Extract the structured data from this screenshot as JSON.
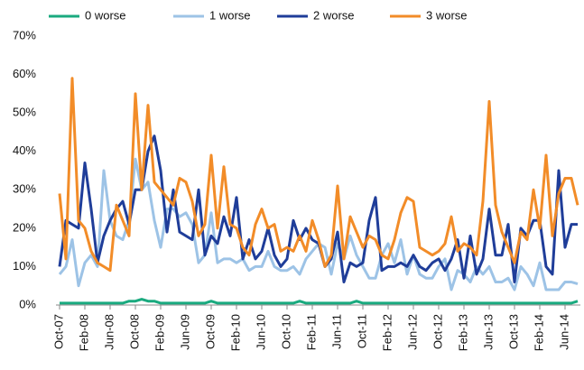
{
  "chart_data": {
    "type": "line",
    "categories": [
      "Oct-07",
      null,
      null,
      null,
      "Feb-08",
      null,
      null,
      null,
      "Jun-08",
      null,
      null,
      null,
      "Oct-08",
      null,
      null,
      null,
      "Feb-09",
      null,
      null,
      null,
      "Jun-09",
      null,
      null,
      null,
      "Oct-09",
      null,
      null,
      null,
      "Feb-10",
      null,
      null,
      null,
      "Jun-10",
      null,
      null,
      null,
      "Oct-10",
      null,
      null,
      null,
      "Feb-11",
      null,
      null,
      null,
      "Jun-11",
      null,
      null,
      null,
      "Oct-11",
      null,
      null,
      null,
      "Feb-12",
      null,
      null,
      null,
      "Jun-12",
      null,
      null,
      null,
      "Oct-12",
      null,
      null,
      null,
      "Feb-13",
      null,
      null,
      null,
      "Jun-13",
      null,
      null,
      null,
      "Oct-13",
      null,
      null,
      null,
      "Feb-14",
      null,
      null,
      null,
      "Jun-14",
      null,
      null
    ],
    "series": [
      {
        "name": "0 worse",
        "color": "#1aaa7f",
        "values": [
          0.5,
          0.5,
          0.5,
          0.5,
          0.5,
          0.5,
          0.5,
          0.5,
          0.5,
          0.5,
          0.5,
          1,
          1,
          1.5,
          1,
          1,
          0.5,
          0.5,
          0.5,
          0.5,
          0.5,
          0.5,
          0.5,
          0.5,
          1,
          0.5,
          0.5,
          0.5,
          0.5,
          0.5,
          0.5,
          0.5,
          0.5,
          0.5,
          0.5,
          0.5,
          0.5,
          0.5,
          1,
          0.5,
          0.5,
          0.5,
          0.5,
          0.5,
          0.5,
          0.5,
          0.5,
          1,
          0.5,
          0.5,
          0.5,
          0.5,
          0.5,
          0.5,
          0.5,
          0.5,
          0.5,
          0.5,
          0.5,
          0.5,
          0.5,
          0.5,
          0.5,
          0.5,
          0.5,
          0.5,
          0.5,
          0.5,
          0.5,
          0.5,
          0.5,
          0.5,
          0.5,
          0.5,
          0.5,
          0.5,
          0.5,
          0.5,
          0.5,
          0.5,
          0.5,
          0.5,
          1
        ]
      },
      {
        "name": "1 worse",
        "color": "#9dc3e6",
        "values": [
          8,
          10,
          17,
          5,
          11,
          13,
          10,
          35,
          22,
          18,
          17,
          22,
          38,
          30,
          32,
          22,
          15,
          25,
          25,
          23,
          24,
          21,
          11,
          13,
          24,
          11,
          12,
          12,
          11,
          12,
          9,
          10,
          10,
          14,
          10,
          9,
          9,
          10,
          8,
          12,
          14,
          16,
          15,
          8,
          16,
          12,
          18,
          13,
          10,
          7,
          7,
          13,
          16,
          11,
          17,
          8,
          13,
          8,
          7,
          7,
          10,
          12,
          4,
          9,
          8,
          6,
          10,
          8,
          10,
          6,
          6,
          7,
          4,
          10,
          8,
          5,
          11,
          4,
          4,
          4,
          6,
          6,
          5.5
        ]
      },
      {
        "name": "2 worse",
        "color": "#1f3d99",
        "values": [
          10,
          22,
          21,
          20,
          37,
          25,
          11,
          18,
          22,
          25,
          27,
          21,
          30,
          30,
          40,
          44,
          35,
          19,
          30,
          19,
          18,
          17,
          30,
          13,
          18,
          16,
          23,
          18,
          28,
          12,
          17,
          12,
          14,
          20,
          13,
          10,
          12,
          22,
          17,
          20,
          17,
          16,
          10,
          12,
          19,
          6,
          11,
          10,
          11,
          22,
          28,
          9,
          10,
          10,
          11,
          10,
          13,
          10,
          9,
          11,
          12,
          9,
          12,
          17,
          7,
          18,
          8,
          12,
          25,
          13,
          13,
          21,
          6,
          20,
          18,
          22,
          22,
          10,
          8,
          35,
          15,
          21,
          21
        ]
      },
      {
        "name": "3 worse",
        "color": "#f28c28",
        "values": [
          29,
          12,
          59,
          22,
          20,
          14,
          11,
          10,
          9,
          26,
          22,
          18,
          55,
          30,
          52,
          32,
          30,
          28,
          26,
          33,
          32,
          27,
          18,
          21,
          39,
          20,
          36,
          21,
          20,
          15,
          13,
          21,
          25,
          20,
          21,
          14,
          15,
          14,
          18,
          14,
          22,
          17,
          10,
          13,
          31,
          12,
          23,
          19,
          15,
          18,
          17,
          13,
          12,
          17,
          24,
          28,
          27,
          15,
          14,
          13,
          14,
          16,
          23,
          14,
          16,
          15,
          13,
          27,
          53,
          26,
          19,
          15,
          11,
          19,
          17,
          30,
          20,
          39,
          18,
          29,
          33,
          33,
          26
        ]
      }
    ],
    "ylim": [
      0,
      70
    ],
    "yticks": [
      {
        "value": 0,
        "label": "0%"
      },
      {
        "value": 10,
        "label": "10%"
      },
      {
        "value": 20,
        "label": "20%"
      },
      {
        "value": 30,
        "label": "30%"
      },
      {
        "value": 40,
        "label": "40%"
      },
      {
        "value": 50,
        "label": "50%"
      },
      {
        "value": 60,
        "label": "60%"
      },
      {
        "value": 70,
        "label": "70%"
      }
    ],
    "grid": false
  }
}
